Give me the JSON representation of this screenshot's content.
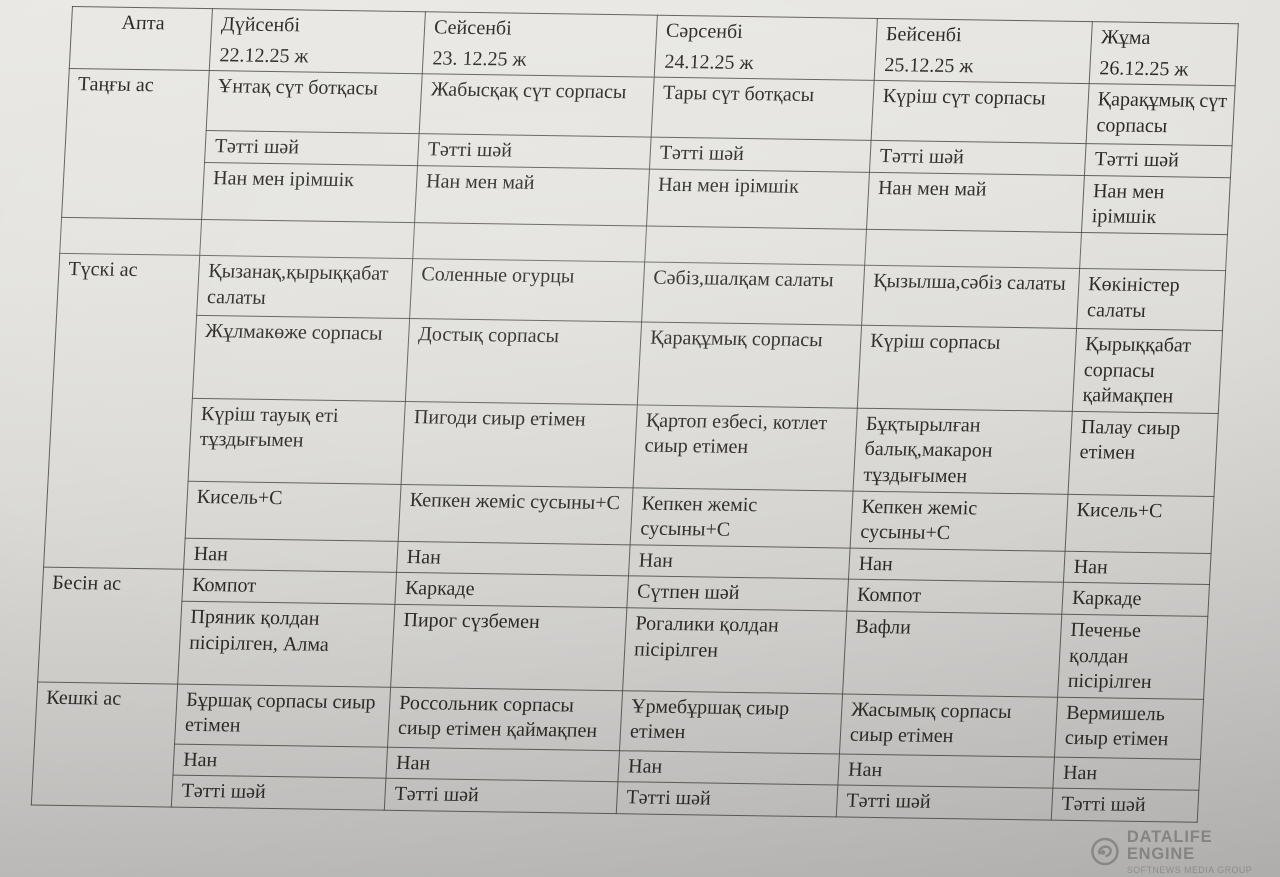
{
  "table": {
    "corner_header": "Апта",
    "columns": [
      {
        "day": "Дүйсенбі",
        "date": "22.12.25 ж"
      },
      {
        "day": "Сейсенбі",
        "date": "23. 12.25 ж"
      },
      {
        "day": "Сәрсенбі",
        "date": "24.12.25 ж"
      },
      {
        "day": "Бейсенбі",
        "date": "25.12.25 ж"
      },
      {
        "day": "Жұма",
        "date": "26.12.25 ж"
      }
    ],
    "sections": [
      {
        "label": "Таңғы ас",
        "rows": [
          [
            "Ұнтақ сүт ботқасы",
            "Жабысқақ сүт сорпасы",
            "Тары сүт ботқасы",
            "Күріш сүт сорпасы",
            "Қарақұмық сүт сорпасы"
          ],
          [
            "Тәтті шәй",
            "Тәтті шәй",
            "Тәтті шәй",
            "Тәтті шәй",
            "Тәтті шәй"
          ],
          [
            "Нан мен ірімшік",
            "Нан мен май",
            "Нан мен ірімшік",
            "Нан мен май",
            "Нан мен ірімшік"
          ]
        ]
      },
      {
        "label": "",
        "rows": [
          [
            "",
            "",
            "",
            "",
            ""
          ]
        ]
      },
      {
        "label": "Түскі ас",
        "rows": [
          [
            "Қызанақ,қырыққабат салаты",
            "Соленные огурцы",
            "Сәбіз,шалқам салаты",
            "Қызылша,сәбіз салаты",
            "Көкіністер салаты"
          ],
          [
            "Жұлмакөже сорпасы",
            "Достық сорпасы",
            "Қарақұмық сорпасы",
            "Күріш сорпасы",
            "Қырыққабат сорпасы қаймақпен"
          ],
          [
            "Күріш тауық еті тұздығымен",
            "Пигоди сиыр етімен",
            "Қартоп езбесі, котлет сиыр етімен",
            "Бұқтырылған балық,макарон тұздығымен",
            "Палау сиыр етімен"
          ],
          [
            "Кисель+С",
            "Кепкен жеміс сусыны+С",
            "Кепкен жеміс сусыны+С",
            "Кепкен жеміс сусыны+С",
            "Кисель+С"
          ],
          [
            "Нан",
            "Нан",
            "Нан",
            "Нан",
            "Нан"
          ]
        ]
      },
      {
        "label": "Бесін ас",
        "rows": [
          [
            "Компот",
            "Каркаде",
            "Сүтпен шәй",
            "Компот",
            "Каркаде"
          ],
          [
            "Пряник қолдан пісірілген, Алма",
            "Пирог сүзбемен",
            "Рогалики қолдан пісірілген",
            "Вафли",
            "Печенье қолдан пісірілген"
          ]
        ]
      },
      {
        "label": "Кешкі ас",
        "rows": [
          [
            "Бұршақ сорпасы сиыр етімен",
            "Россольник сорпасы сиыр етімен қаймақпен",
            "Ұрмебұршақ сиыр етімен",
            "Жасымық сорпасы сиыр етімен",
            "Вермишель сиыр етімен"
          ],
          [
            "Нан",
            "Нан",
            "Нан",
            "Нан",
            "Нан"
          ],
          [
            "Тәтті шәй",
            "Тәтті шәй",
            "Тәтті шәй",
            "Тәтті шәй",
            "Тәтті шәй"
          ]
        ]
      }
    ]
  },
  "watermark": {
    "title": "DATALIFE ENGINE",
    "subtitle": "SOFTNEWS MEDIA GROUP"
  }
}
